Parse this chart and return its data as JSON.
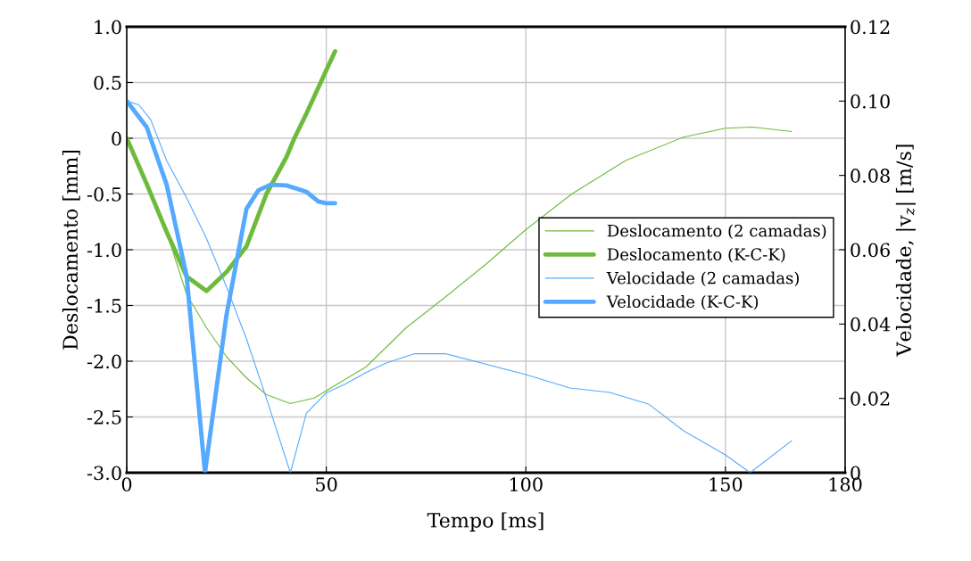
{
  "chart_data": {
    "type": "line",
    "xlabel": "Tempo [ms]",
    "ylabel": "Deslocamento [mm]",
    "y2label": "Velocidade, |v$_{z}$| [m/s]",
    "xlim": [
      0,
      180
    ],
    "xticks": [
      0,
      50,
      100,
      150,
      180
    ],
    "ylim": [
      -3.0,
      1.0
    ],
    "yticks": [
      {
        "value": -3,
        "label": "-3.0"
      },
      -2.5,
      {
        "value": -2,
        "label": "-2.0"
      },
      -1.5,
      {
        "value": -1,
        "label": "-1.0"
      },
      -0.5,
      0,
      0.5,
      {
        "value": 1,
        "label": "1.0"
      }
    ],
    "y2lim": [
      0,
      0.12
    ],
    "y2ticks": [
      0,
      0.02,
      0.04,
      0.06,
      0.08,
      {
        "value": 0.1,
        "label": "0.10"
      },
      0.12
    ],
    "grid": true,
    "legend": "right",
    "marker": "none",
    "line_style": "solid",
    "series": [
      {
        "name": "Deslocamento (2 camadas)",
        "color": "#6dbb3c",
        "x": [
          0,
          5,
          10,
          15,
          20,
          25,
          30,
          35,
          41,
          47,
          53,
          60,
          70,
          80,
          90,
          100,
          111.5,
          125,
          139.5,
          150,
          156.8,
          166.6
        ],
        "values": [
          0,
          -0.41,
          -0.84,
          -1.4,
          -1.7,
          -1.96,
          -2.15,
          -2.3,
          -2.38,
          -2.33,
          -2.2,
          -2.05,
          -1.7,
          -1.42,
          -1.13,
          -0.82,
          -0.5,
          -0.2,
          0.01,
          0.09,
          0.1,
          0.06
        ]
      },
      {
        "name": "Deslocamento (K-C-K)",
        "color": "#6dbb3c",
        "x": [
          0,
          5,
          10,
          15,
          20,
          25,
          30,
          35,
          40,
          42,
          45,
          50,
          52.2
        ],
        "values": [
          0,
          -0.41,
          -0.84,
          -1.24,
          -1.37,
          -1.2,
          -0.97,
          -0.5,
          -0.17,
          0,
          0.22,
          0.61,
          0.78
        ]
      },
      {
        "name": "Velocidade (2 camadas)",
        "color": "#55aaff",
        "axis": "y2",
        "x": [
          0,
          3,
          6,
          10,
          15,
          20,
          25,
          30,
          35,
          41,
          45,
          50,
          55,
          60,
          65,
          72,
          80,
          100,
          111,
          121,
          130.7,
          139.5,
          150,
          156.2,
          166.6
        ],
        "values": [
          0.1,
          0.099,
          0.095,
          0.084,
          0.074,
          0.063,
          0.05,
          0.036,
          0.02,
          0,
          0.016,
          0.0215,
          0.024,
          0.027,
          0.0295,
          0.032,
          0.032,
          0.0264,
          0.0228,
          0.0216,
          0.0185,
          0.0113,
          0.0048,
          0,
          0.0086
        ]
      },
      {
        "name": "Velocidade (K-C-K)",
        "color": "#55aaff",
        "axis": "y2",
        "x": [
          0,
          5,
          10,
          15,
          19.6,
          25,
          30,
          33,
          36,
          40,
          45,
          48,
          50,
          52.2
        ],
        "values": [
          0.1,
          0.093,
          0.0775,
          0.053,
          0,
          0.0425,
          0.071,
          0.076,
          0.0775,
          0.0773,
          0.0756,
          0.073,
          0.0725,
          0.0725
        ]
      }
    ]
  }
}
